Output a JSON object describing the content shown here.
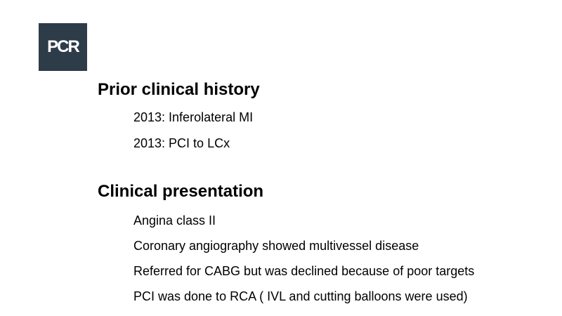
{
  "logo": {
    "text": "PCR",
    "color": "#2e3c49"
  },
  "sections": [
    {
      "title": "Prior clinical history",
      "items": [
        "2013: Inferolateral MI",
        "2013: PCI to LCx"
      ]
    },
    {
      "title": "Clinical presentation",
      "items": [
        "Angina class II",
        "Coronary angiography showed multivessel disease",
        "Referred for CABG but was declined because of poor targets",
        "PCI was done to RCA ( IVL and cutting balloons were used)"
      ]
    }
  ]
}
